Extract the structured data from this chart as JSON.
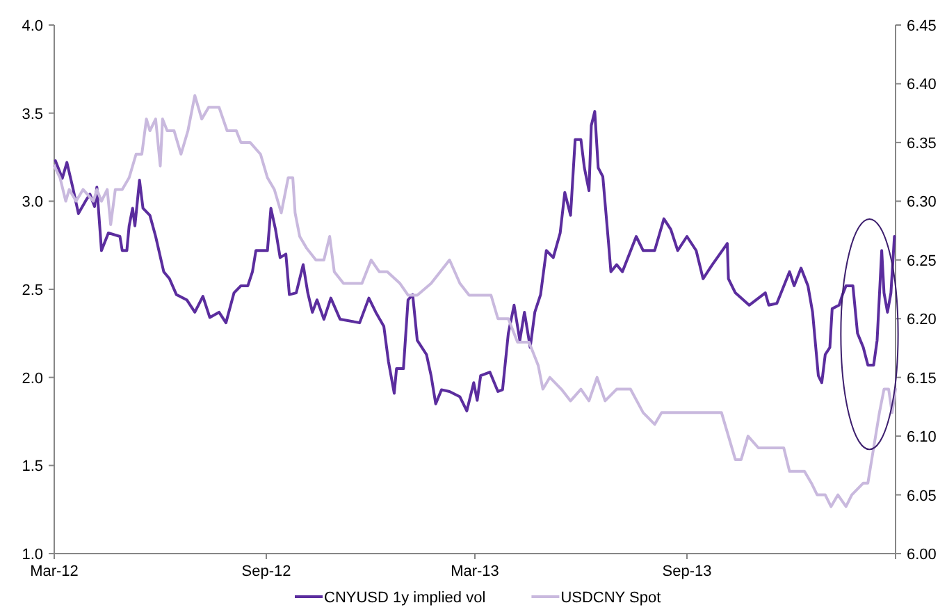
{
  "chart_data": {
    "type": "line",
    "xlim": [
      "2012-03-01",
      "2014-03-01"
    ],
    "xticks": [
      {
        "value": "2012-03-01",
        "label": "Mar-12"
      },
      {
        "value": "2012-09-01",
        "label": "Sep-12"
      },
      {
        "value": "2013-03-01",
        "label": "Mar-13"
      },
      {
        "value": "2013-09-01",
        "label": "Sep-13"
      },
      {
        "value": "2014-03-01",
        "label": null
      }
    ],
    "ylim": [
      1.0,
      4.0
    ],
    "yticks": [
      {
        "value": 1,
        "label": "1.0"
      },
      {
        "value": 1.5,
        "label": "1.5"
      },
      {
        "value": 2,
        "label": "2.0"
      },
      {
        "value": 2.5,
        "label": "2.5"
      },
      {
        "value": 3,
        "label": "3.0"
      },
      {
        "value": 3.5,
        "label": "3.5"
      },
      {
        "value": 4,
        "label": "4.0"
      }
    ],
    "y2lim": [
      6.0,
      6.45
    ],
    "y2ticks": [
      {
        "value": 6,
        "label": "6.00"
      },
      {
        "value": 6.05,
        "label": "6.05"
      },
      {
        "value": 6.1,
        "label": "6.10"
      },
      {
        "value": 6.15,
        "label": "6.15"
      },
      {
        "value": 6.2,
        "label": "6.20"
      },
      {
        "value": 6.25,
        "label": "6.25"
      },
      {
        "value": 6.3,
        "label": "6.30"
      },
      {
        "value": 6.35,
        "label": "6.35"
      },
      {
        "value": 6.4,
        "label": "6.40"
      },
      {
        "value": 6.45,
        "label": "6.45"
      }
    ],
    "grid": false,
    "legend": "bottom",
    "marker": "none",
    "line_style": "solid",
    "series": [
      {
        "name": "CNYUSD 1y implied vol",
        "color": "#5b2d9e",
        "x": [
          "2012-03-02",
          "2012-03-08",
          "2012-03-12",
          "2012-03-17",
          "2012-03-22",
          "2012-03-29",
          "2012-04-01",
          "2012-04-05",
          "2012-04-07",
          "2012-04-11",
          "2012-04-17",
          "2012-04-27",
          "2012-04-29",
          "2012-05-03",
          "2012-05-05",
          "2012-05-08",
          "2012-05-10",
          "2012-05-14",
          "2012-05-17",
          "2012-05-23",
          "2012-05-28",
          "2012-06-04",
          "2012-06-09",
          "2012-06-15",
          "2012-06-24",
          "2012-07-01",
          "2012-07-08",
          "2012-07-14",
          "2012-07-22",
          "2012-07-28",
          "2012-08-04",
          "2012-08-10",
          "2012-08-16",
          "2012-08-20",
          "2012-08-23",
          "2012-09-02",
          "2012-09-05",
          "2012-09-09",
          "2012-09-13",
          "2012-09-18",
          "2012-09-21",
          "2012-09-27",
          "2012-10-03",
          "2012-10-07",
          "2012-10-11",
          "2012-10-15",
          "2012-10-21",
          "2012-10-27",
          "2012-11-04",
          "2012-11-21",
          "2012-11-29",
          "2012-12-05",
          "2012-12-12",
          "2012-12-16",
          "2012-12-21",
          "2012-12-23",
          "2012-12-29",
          "2013-01-02",
          "2013-01-06",
          "2013-01-10",
          "2013-01-18",
          "2013-01-22",
          "2013-01-26",
          "2013-01-31",
          "2013-02-07",
          "2013-02-16",
          "2013-02-22",
          "2013-02-28",
          "2013-03-03",
          "2013-03-06",
          "2013-03-14",
          "2013-03-21",
          "2013-03-25",
          "2013-03-30",
          "2013-04-04",
          "2013-04-09",
          "2013-04-13",
          "2013-04-18",
          "2013-04-22",
          "2013-04-27",
          "2013-05-02",
          "2013-05-08",
          "2013-05-14",
          "2013-05-18",
          "2013-05-23",
          "2013-05-27",
          "2013-06-01",
          "2013-06-04",
          "2013-06-08",
          "2013-06-10",
          "2013-06-13",
          "2013-06-16",
          "2013-06-20",
          "2013-06-25",
          "2013-06-27",
          "2013-07-02",
          "2013-07-07",
          "2013-07-19",
          "2013-07-25",
          "2013-08-04",
          "2013-08-12",
          "2013-08-18",
          "2013-08-24",
          "2013-09-01",
          "2013-09-09",
          "2013-09-15",
          "2013-09-23",
          "2013-10-06",
          "2013-10-07",
          "2013-10-13",
          "2013-10-25",
          "2013-11-08",
          "2013-11-11",
          "2013-11-18",
          "2013-11-29",
          "2013-12-03",
          "2013-12-09",
          "2013-12-15",
          "2013-12-19",
          "2013-12-24",
          "2013-12-27",
          "2013-12-30",
          "2014-01-03",
          "2014-01-05",
          "2014-01-11",
          "2014-01-14",
          "2014-01-17",
          "2014-01-23",
          "2014-01-27",
          "2014-02-01",
          "2014-02-05",
          "2014-02-10",
          "2014-02-13",
          "2014-02-17",
          "2014-02-19",
          "2014-02-22",
          "2014-02-25",
          "2014-02-28"
        ],
        "values": [
          3.23,
          3.13,
          3.22,
          3.08,
          2.93,
          3.01,
          3.04,
          2.97,
          3.08,
          2.72,
          2.82,
          2.8,
          2.72,
          2.72,
          2.86,
          2.96,
          2.86,
          3.12,
          2.96,
          2.92,
          2.8,
          2.6,
          2.56,
          2.47,
          2.44,
          2.37,
          2.46,
          2.34,
          2.37,
          2.31,
          2.48,
          2.52,
          2.52,
          2.6,
          2.72,
          2.72,
          2.96,
          2.84,
          2.68,
          2.7,
          2.47,
          2.48,
          2.64,
          2.48,
          2.37,
          2.44,
          2.33,
          2.45,
          2.33,
          2.31,
          2.45,
          2.37,
          2.29,
          2.09,
          1.91,
          2.05,
          2.05,
          2.44,
          2.47,
          2.21,
          2.13,
          2.01,
          1.85,
          1.93,
          1.92,
          1.89,
          1.81,
          1.97,
          1.87,
          2.01,
          2.03,
          1.92,
          1.93,
          2.25,
          2.41,
          2.21,
          2.37,
          2.17,
          2.37,
          2.47,
          2.72,
          2.68,
          2.82,
          3.05,
          2.92,
          3.35,
          3.35,
          3.19,
          3.06,
          3.43,
          3.51,
          3.19,
          3.14,
          2.76,
          2.6,
          2.64,
          2.6,
          2.8,
          2.72,
          2.72,
          2.9,
          2.84,
          2.72,
          2.8,
          2.72,
          2.56,
          2.64,
          2.76,
          2.56,
          2.48,
          2.41,
          2.48,
          2.41,
          2.42,
          2.6,
          2.52,
          2.62,
          2.52,
          2.37,
          2.01,
          1.97,
          2.13,
          2.17,
          2.39,
          2.41,
          2.47,
          2.52,
          2.52,
          2.25,
          2.17,
          2.07,
          2.07,
          2.21,
          2.72,
          2.48,
          2.37,
          2.48,
          2.8
        ]
      },
      {
        "name": "USDCNY Spot",
        "color": "#c9b9de",
        "axis": "y2",
        "x": [
          "2012-03-01",
          "2012-03-06",
          "2012-03-11",
          "2012-03-14",
          "2012-03-20",
          "2012-03-26",
          "2012-04-04",
          "2012-04-07",
          "2012-04-11",
          "2012-04-16",
          "2012-04-19",
          "2012-04-23",
          "2012-04-29",
          "2012-05-05",
          "2012-05-11",
          "2012-05-16",
          "2012-05-20",
          "2012-05-23",
          "2012-05-28",
          "2012-06-01",
          "2012-06-03",
          "2012-06-07",
          "2012-06-13",
          "2012-06-19",
          "2012-06-25",
          "2012-07-01",
          "2012-07-07",
          "2012-07-13",
          "2012-07-22",
          "2012-07-29",
          "2012-08-06",
          "2012-08-10",
          "2012-08-18",
          "2012-08-27",
          "2012-09-02",
          "2012-09-08",
          "2012-09-14",
          "2012-09-20",
          "2012-09-24",
          "2012-09-26",
          "2012-09-30",
          "2012-10-06",
          "2012-10-14",
          "2012-10-21",
          "2012-10-26",
          "2012-10-30",
          "2012-11-07",
          "2012-11-15",
          "2012-11-23",
          "2012-12-01",
          "2012-12-08",
          "2012-12-15",
          "2012-12-26",
          "2013-01-02",
          "2013-01-10",
          "2013-01-22",
          "2013-02-07",
          "2013-02-16",
          "2013-02-24",
          "2013-03-09",
          "2013-03-15",
          "2013-03-21",
          "2013-03-30",
          "2013-04-07",
          "2013-04-17",
          "2013-04-25",
          "2013-04-29",
          "2013-05-05",
          "2013-05-15",
          "2013-05-23",
          "2013-06-01",
          "2013-06-08",
          "2013-06-15",
          "2013-06-22",
          "2013-07-02",
          "2013-07-14",
          "2013-07-25",
          "2013-08-04",
          "2013-08-10",
          "2013-08-19",
          "2013-09-05",
          "2013-09-21",
          "2013-10-01",
          "2013-10-07",
          "2013-10-13",
          "2013-10-18",
          "2013-10-24",
          "2013-11-02",
          "2013-11-18",
          "2013-11-24",
          "2013-11-29",
          "2013-12-12",
          "2013-12-18",
          "2013-12-23",
          "2013-12-30",
          "2014-01-04",
          "2014-01-10",
          "2014-01-17",
          "2014-01-22",
          "2014-02-01",
          "2014-02-05",
          "2014-02-10",
          "2014-02-15",
          "2014-02-19",
          "2014-02-23",
          "2014-02-26",
          "2014-03-01"
        ],
        "values": [
          6.33,
          6.32,
          6.3,
          6.31,
          6.3,
          6.31,
          6.3,
          6.31,
          6.3,
          6.31,
          6.28,
          6.31,
          6.31,
          6.32,
          6.34,
          6.34,
          6.37,
          6.36,
          6.37,
          6.33,
          6.37,
          6.36,
          6.36,
          6.34,
          6.36,
          6.39,
          6.37,
          6.38,
          6.38,
          6.36,
          6.36,
          6.35,
          6.35,
          6.34,
          6.32,
          6.31,
          6.29,
          6.32,
          6.32,
          6.29,
          6.27,
          6.26,
          6.25,
          6.25,
          6.27,
          6.24,
          6.23,
          6.23,
          6.23,
          6.25,
          6.24,
          6.24,
          6.23,
          6.22,
          6.22,
          6.23,
          6.25,
          6.23,
          6.22,
          6.22,
          6.22,
          6.2,
          6.2,
          6.18,
          6.18,
          6.16,
          6.14,
          6.15,
          6.14,
          6.13,
          6.14,
          6.13,
          6.15,
          6.13,
          6.14,
          6.14,
          6.12,
          6.11,
          6.12,
          6.12,
          6.12,
          6.12,
          6.12,
          6.1,
          6.08,
          6.08,
          6.1,
          6.09,
          6.09,
          6.09,
          6.07,
          6.07,
          6.06,
          6.05,
          6.05,
          6.04,
          6.05,
          6.04,
          6.05,
          6.06,
          6.06,
          6.09,
          6.12,
          6.14,
          6.14,
          6.12,
          6.14
        ]
      }
    ]
  }
}
